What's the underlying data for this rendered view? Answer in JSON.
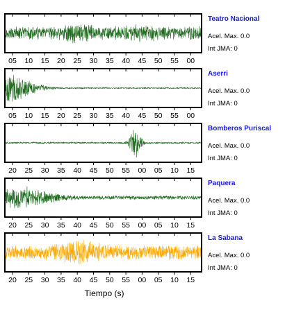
{
  "chart_data": [
    {
      "type": "line",
      "title": "Teatro Nacional",
      "lines": [
        "Acel. Max. 0.0",
        "Int JMA: 0"
      ],
      "color": "#1f6b1f",
      "tick_labels": [
        "05",
        "10",
        "15",
        "20",
        "25",
        "30",
        "35",
        "40",
        "45",
        "50",
        "55",
        "00"
      ],
      "envelope": {
        "base": 0.38,
        "bursts": [
          [
            0.38,
            0.06,
            0.25
          ],
          [
            0.72,
            0.08,
            0.15
          ],
          [
            0.96,
            0.03,
            0.15
          ]
        ]
      },
      "ylim": [
        -1,
        1
      ]
    },
    {
      "type": "line",
      "title": "Aserri",
      "lines": [
        "Acel. Max. 0.0",
        "Int JMA: 0"
      ],
      "color": "#1f6b1f",
      "tick_labels": [
        "05",
        "10",
        "15",
        "20",
        "25",
        "30",
        "35",
        "40",
        "45",
        "50",
        "55",
        "00"
      ],
      "envelope": {
        "base": 0.04,
        "bursts": [
          [
            0.02,
            0.09,
            0.85
          ]
        ]
      },
      "ylim": [
        -1,
        1
      ]
    },
    {
      "type": "line",
      "title": "Bomberos Puriscal",
      "lines": [
        "Acel. Max. 0.0",
        "Int JMA: 0"
      ],
      "color": "#1f6b1f",
      "tick_labels": [
        "20",
        "25",
        "30",
        "35",
        "40",
        "45",
        "50",
        "55",
        "00",
        "05",
        "10",
        "15"
      ],
      "envelope": {
        "base": 0.05,
        "bursts": [
          [
            0.665,
            0.02,
            0.95
          ]
        ]
      },
      "ylim": [
        -1,
        1
      ]
    },
    {
      "type": "line",
      "title": "Paquera",
      "lines": [
        "Acel. Max. 0.0",
        "Int JMA: 0"
      ],
      "color": "#1f6b1f",
      "tick_labels": [
        "20",
        "25",
        "30",
        "35",
        "40",
        "45",
        "50",
        "55",
        "00",
        "05",
        "10",
        "15"
      ],
      "envelope": {
        "base": 0.12,
        "bursts": [
          [
            0.06,
            0.12,
            0.55
          ]
        ]
      },
      "ylim": [
        -1,
        1
      ]
    },
    {
      "type": "line",
      "title": "La Sabana",
      "lines": [
        "Acel. Max. 0.0",
        "Int JMA: 0"
      ],
      "color": "#ffaa00",
      "tick_labels": [
        "20",
        "25",
        "30",
        "35",
        "40",
        "45",
        "50",
        "55",
        "00",
        "05",
        "10",
        "15"
      ],
      "envelope": {
        "base": 0.42,
        "bursts": [
          [
            0.38,
            0.08,
            0.35
          ]
        ]
      },
      "ylim": [
        -1,
        1
      ]
    }
  ],
  "xlabel": "Tiempo (s)"
}
